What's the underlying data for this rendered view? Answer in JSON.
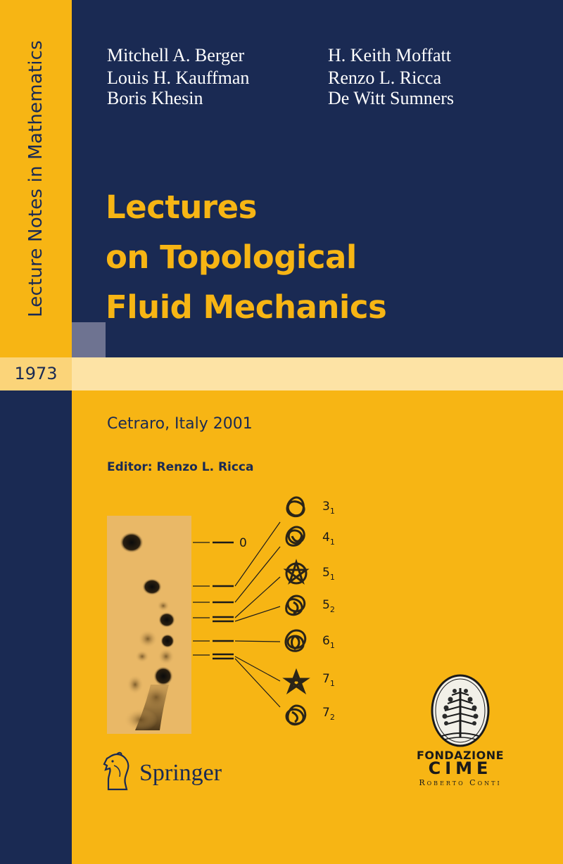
{
  "series_name": "Lecture Notes in Mathematics",
  "volume": "1973",
  "authors_left": [
    "Mitchell A. Berger",
    "Louis H. Kauffman",
    "Boris Khesin"
  ],
  "authors_right": [
    "H. Keith Moffatt",
    "Renzo L. Ricca",
    "De Witt Sumners"
  ],
  "title_lines": [
    "Lectures",
    "on Topological",
    "Fluid Mechanics"
  ],
  "place": "Cetraro, Italy 2001",
  "editor": "Editor: Renzo L. Ricca",
  "figure": {
    "zero_label": "0",
    "knot_labels": [
      {
        "base": "3",
        "sub": "1"
      },
      {
        "base": "4",
        "sub": "1"
      },
      {
        "base": "5",
        "sub": "1"
      },
      {
        "base": "5",
        "sub": "2"
      },
      {
        "base": "6",
        "sub": "1"
      },
      {
        "base": "7",
        "sub": "1"
      },
      {
        "base": "7",
        "sub": "2"
      }
    ]
  },
  "publisher": "Springer",
  "foundation": {
    "line1": "Fondazione",
    "line2": "CIME",
    "line3": "Roberto Conti"
  },
  "colors": {
    "navy": "#1a2a53",
    "yellow": "#f7b514",
    "band": "#fde3a5"
  }
}
